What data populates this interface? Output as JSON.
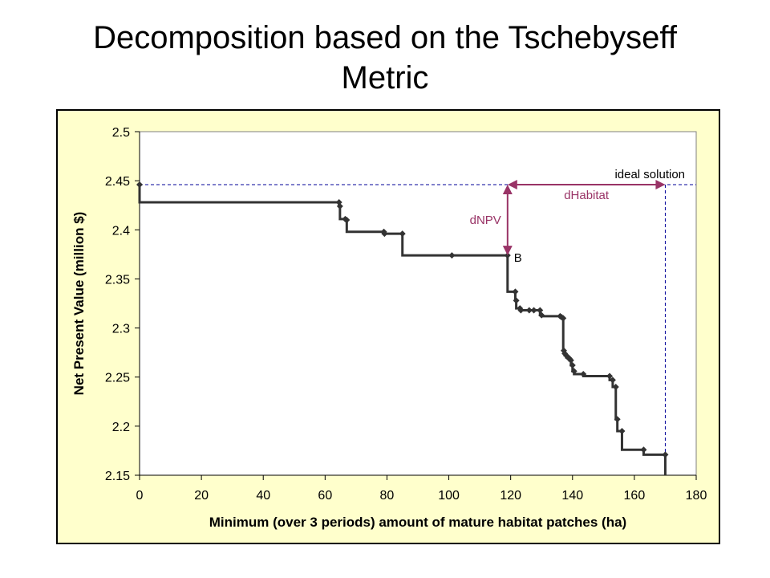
{
  "slide": {
    "title_line1": "Decomposition based on the Tschebyseff",
    "title_line2": "Metric"
  },
  "chart_data": {
    "type": "line",
    "title": "",
    "xlabel": "Minimum (over 3 periods) amount of mature habitat patches (ha)",
    "ylabel": "Net Present Value (million $)",
    "xlim": [
      0,
      180
    ],
    "ylim": [
      2.15,
      2.5
    ],
    "x_ticks": [
      0,
      20,
      40,
      60,
      80,
      100,
      120,
      140,
      160,
      180
    ],
    "y_ticks": [
      2.15,
      2.2,
      2.25,
      2.3,
      2.35,
      2.4,
      2.45,
      2.5
    ],
    "y_tick_labels": [
      "2.15",
      "2.2",
      "2.25",
      "2.3",
      "2.35",
      "2.4",
      "2.45",
      "2.5"
    ],
    "grid": false,
    "colors": {
      "series": "#333333",
      "ideal_line": "#000099",
      "arrow": "#993366",
      "plot_bg": "#ffffff",
      "frame_bg": "#ffffcc"
    },
    "series": [
      {
        "values": [
          [
            0,
            2.446
          ],
          [
            64.5,
            2.428
          ],
          [
            64.8,
            2.424
          ],
          [
            66.5,
            2.411
          ],
          [
            67,
            2.41
          ],
          [
            79,
            2.398
          ],
          [
            79.2,
            2.396
          ],
          [
            85,
            2.396
          ],
          [
            101,
            2.374
          ],
          [
            119,
            2.374
          ],
          [
            121.5,
            2.337
          ],
          [
            121.8,
            2.328
          ],
          [
            123,
            2.32
          ],
          [
            123.3,
            2.318
          ],
          [
            126,
            2.318
          ],
          [
            127.5,
            2.318
          ],
          [
            129.5,
            2.318
          ],
          [
            130,
            2.313
          ],
          [
            136,
            2.312
          ],
          [
            136.5,
            2.311
          ],
          [
            137,
            2.31
          ],
          [
            137.2,
            2.277
          ],
          [
            137.5,
            2.274
          ],
          [
            138,
            2.272
          ],
          [
            138.5,
            2.27
          ],
          [
            139,
            2.269
          ],
          [
            139.5,
            2.267
          ],
          [
            140,
            2.262
          ],
          [
            140.5,
            2.256
          ],
          [
            143.5,
            2.253
          ],
          [
            152,
            2.251
          ],
          [
            153,
            2.247
          ],
          [
            154,
            2.24
          ],
          [
            154.5,
            2.207
          ],
          [
            156,
            2.195
          ],
          [
            163,
            2.176
          ],
          [
            170,
            2.171
          ]
        ]
      }
    ],
    "ideal_npv": 2.446,
    "ideal_habitat": 170,
    "point_b": [
      119,
      2.374
    ],
    "annotations": {
      "ideal_label": "ideal solution",
      "dnpv_label": "dNPV",
      "dhabitat_label": "dHabitat",
      "b_label": "B"
    }
  }
}
